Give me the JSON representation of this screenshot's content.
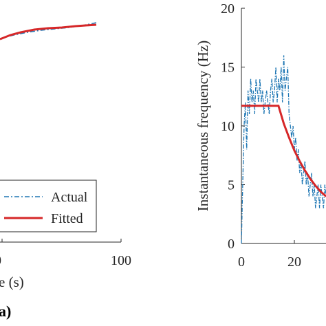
{
  "colors": {
    "actual": "#1f77b4",
    "fitted": "#d62728",
    "axis": "#262626"
  },
  "panels": [
    {
      "label": "a)"
    }
  ],
  "chart_data": [
    {
      "type": "line",
      "xlabel": "e (s)",
      "ylabel": "",
      "x_ticks": [
        "0",
        "100"
      ],
      "xlim": [
        0,
        100
      ],
      "legend": {
        "placement": "bottom-right",
        "entries": [
          "Actual",
          "Fitted"
        ]
      },
      "series": [
        {
          "name": "Actual",
          "style": "dash-dot",
          "x": [
            0,
            10,
            20,
            30,
            40,
            50,
            60,
            70,
            80
          ],
          "y": [
            0.55,
            0.68,
            0.76,
            0.81,
            0.85,
            0.88,
            0.9,
            0.92,
            0.94
          ]
        },
        {
          "name": "Fitted",
          "style": "solid",
          "x": [
            0,
            10,
            20,
            30,
            40,
            50,
            60,
            70,
            80
          ],
          "y": [
            0.55,
            0.68,
            0.76,
            0.81,
            0.85,
            0.87,
            0.89,
            0.9,
            0.91
          ]
        }
      ]
    },
    {
      "type": "line",
      "xlabel": "",
      "ylabel": "Instantaneous frequency (Hz)",
      "ylim": [
        0,
        20
      ],
      "y_ticks": [
        "0",
        "5",
        "10",
        "15",
        "20"
      ],
      "x_ticks": [
        "0",
        "20"
      ],
      "series": [
        {
          "name": "Actual",
          "style": "dash-dot",
          "x": [
            0,
            0.5,
            1,
            1.5,
            2,
            2.5,
            3,
            3.5,
            4,
            4.5,
            5,
            5.5,
            6,
            6.5,
            7,
            7.5,
            8,
            8.5,
            9,
            9.5,
            10,
            10.5,
            11,
            11.5,
            12,
            12.5,
            13,
            13.5,
            14,
            14.5,
            15,
            15.5,
            16,
            16.5,
            17,
            17.5,
            18,
            18.5,
            19,
            19.5,
            20,
            20.5,
            21,
            21.5,
            22,
            22.5,
            23,
            23.5,
            24,
            24.5,
            25,
            25.5,
            26,
            26.5,
            27,
            27.5,
            28,
            28.5,
            29,
            29.5,
            30,
            30.5,
            31,
            31.5,
            32
          ],
          "y": [
            0,
            5,
            10,
            12,
            8,
            13,
            11,
            14,
            12,
            13,
            11,
            14,
            13,
            12,
            14,
            12,
            13,
            11,
            12,
            13,
            12,
            11,
            13,
            14,
            12,
            13,
            15,
            12,
            14,
            13,
            15,
            12,
            16,
            13,
            14,
            15,
            11,
            10,
            9,
            10,
            8,
            9,
            7,
            8,
            6,
            7,
            5,
            6,
            7,
            5,
            6,
            4,
            5,
            6,
            4,
            5,
            3,
            4,
            5,
            3,
            5,
            4,
            3,
            5,
            4
          ]
        },
        {
          "name": "Fitted",
          "style": "solid",
          "x": [
            0,
            14,
            16,
            18,
            20,
            22,
            24,
            26,
            28,
            30,
            32
          ],
          "y": [
            11.7,
            11.7,
            10.2,
            9.0,
            7.9,
            7.0,
            6.2,
            5.5,
            4.9,
            4.4,
            4.0
          ]
        }
      ]
    }
  ]
}
